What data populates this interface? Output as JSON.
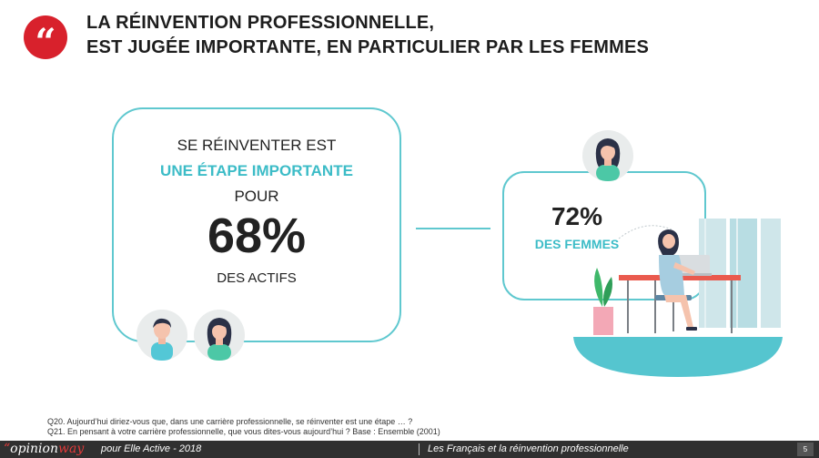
{
  "slide": {
    "title_line1": "LA RÉINVENTION PROFESSIONNELLE,",
    "title_line2": "EST JUGÉE IMPORTANTE, EN PARTICULIER PAR LES FEMMES",
    "quote_glyph": "“"
  },
  "left_box": {
    "line1": "SE RÉINVENTER EST",
    "line2": "UNE ÉTAPE IMPORTANTE",
    "line3": "POUR",
    "percent": "68%",
    "line4": "DES ACTIFS"
  },
  "right_box": {
    "percent": "72%",
    "label": "DES FEMMES"
  },
  "footnotes": [
    "Q20. Aujourd’hui diriez-vous que, dans une carrière professionnelle, se réinventer est une étape … ?",
    "Q21. En pensant à votre carrière professionnelle, que vous dites-vous aujourd’hui ? Base : Ensemble (2001)"
  ],
  "footer": {
    "logo_mark": "“",
    "logo_opinion": "opinion",
    "logo_way": "way",
    "client": "pour Elle Active - 2018",
    "study": "Les Français et la réinvention professionnelle",
    "page_number": "5"
  },
  "colors": {
    "accent_red": "#d8212c",
    "teal": "#5fc8cf",
    "teal_text": "#3cbcc7",
    "footer_bg": "#303030"
  }
}
